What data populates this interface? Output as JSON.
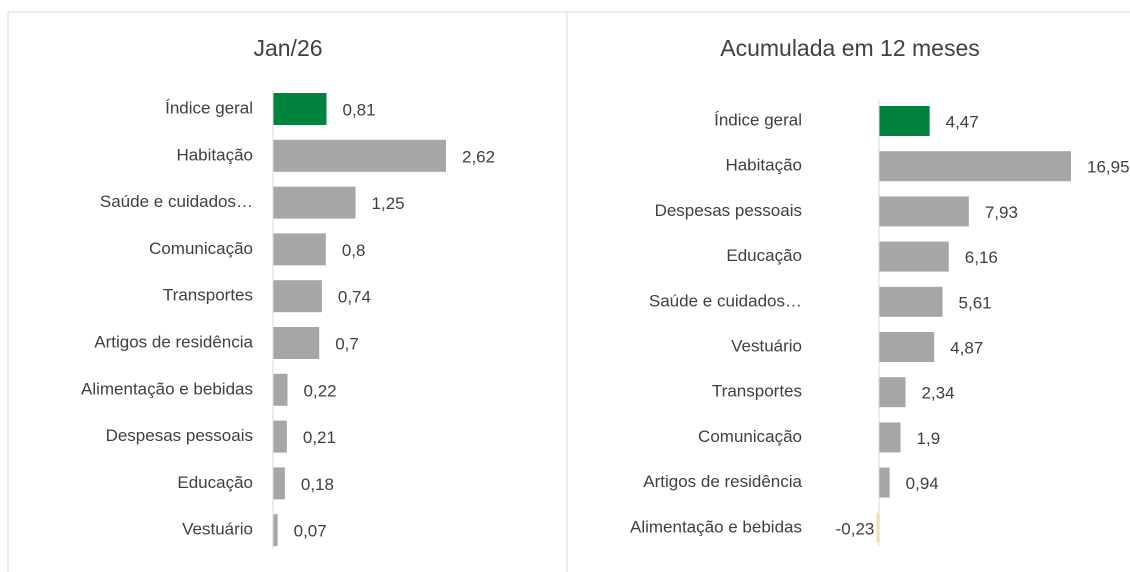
{
  "chart_data": [
    {
      "type": "bar",
      "orientation": "horizontal",
      "title": "Jan/26",
      "categories": [
        "Índice geral",
        "Habitação",
        "Saúde e cuidados…",
        "Comunicação",
        "Transportes",
        "Artigos de residência",
        "Alimentação e bebidas",
        "Despesas pessoais",
        "Educação",
        "Vestuário"
      ],
      "values": [
        0.81,
        2.62,
        1.25,
        0.8,
        0.74,
        0.7,
        0.22,
        0.21,
        0.18,
        0.07
      ],
      "value_labels": [
        "0,81",
        "2,62",
        "1,25",
        "0,8",
        "0,74",
        "0,7",
        "0,22",
        "0,21",
        "0,18",
        "0,07"
      ],
      "colors": [
        "#00843d",
        "#a6a6a6",
        "#a6a6a6",
        "#a6a6a6",
        "#a6a6a6",
        "#a6a6a6",
        "#a6a6a6",
        "#a6a6a6",
        "#a6a6a6",
        "#a6a6a6"
      ]
    },
    {
      "type": "bar",
      "orientation": "horizontal",
      "title": "Acumulada em 12 meses",
      "categories": [
        "Índice geral",
        "Habitação",
        "Despesas pessoais",
        "Educação",
        "Saúde e cuidados…",
        "Vestuário",
        "Transportes",
        "Comunicação",
        "Artigos de residência",
        "Alimentação e bebidas"
      ],
      "values": [
        4.47,
        16.95,
        7.93,
        6.16,
        5.61,
        4.87,
        2.34,
        1.9,
        0.94,
        -0.23
      ],
      "value_labels": [
        "4,47",
        "16,95",
        "7,93",
        "6,16",
        "5,61",
        "4,87",
        "2,34",
        "1,9",
        "0,94",
        "-0,23"
      ],
      "colors": [
        "#00843d",
        "#a6a6a6",
        "#a6a6a6",
        "#a6a6a6",
        "#a6a6a6",
        "#a6a6a6",
        "#a6a6a6",
        "#a6a6a6",
        "#a6a6a6",
        "#f2e2a8"
      ]
    }
  ]
}
